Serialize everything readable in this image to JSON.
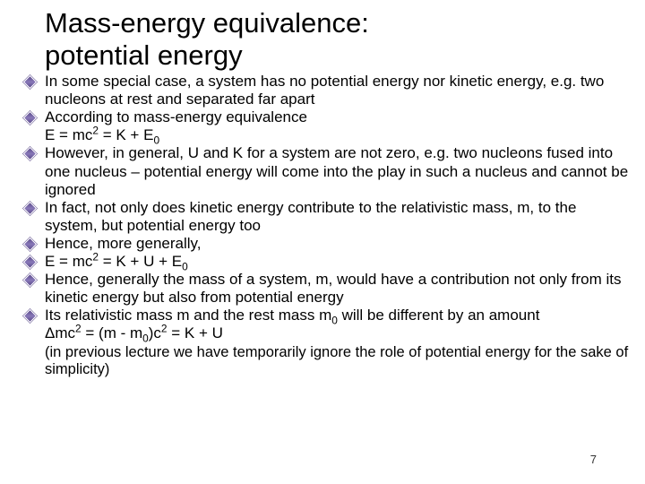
{
  "title_line1": "Mass-energy equivalence:",
  "title_line2": "potential energy",
  "bullets": {
    "b1": "In some special case, a system has no potential energy nor kinetic energy, e.g. two nucleons at rest and separated far apart",
    "b2": "According to mass-energy equivalence",
    "b2_eq_pre": "E = mc",
    "b2_eq_mid1": " = K + E",
    "b3": "However, in general, U and K for a system are not zero, e.g. two nucleons fused into one nucleus – potential energy will come into the play in such a nucleus and cannot be ignored",
    "b4": "In fact, not only does kinetic energy contribute to the relativistic mass, m, to the system, but potential energy too",
    "b5": "Hence, more generally,",
    "b6_pre": "E = mc",
    "b6_mid": " = K + U + E",
    "b7": "Hence, generally the mass of a system, m, would have a contribution not only from its kinetic energy but also from potential energy",
    "b8_pre": "Its relativistic mass m and the rest mass m",
    "b8_post": " will be different by an amount",
    "b8_eq_delta": "Δ",
    "b8_eq_pre": "mc",
    "b8_eq_mid1": " = (m - m",
    "b8_eq_mid2": ")c",
    "b8_eq_post": " = K + U"
  },
  "note": "(in previous lecture we have temporarily ignore the role of potential energy for the sake of simplicity)",
  "sup2": "2",
  "sub0": "0",
  "pagenum": "7",
  "colors": {
    "background": "#ffffff",
    "text": "#000000",
    "bullet_color": "#6a5a9a"
  },
  "fonts": {
    "title_size": 31,
    "body_size": 17,
    "note_size": 16.5
  }
}
